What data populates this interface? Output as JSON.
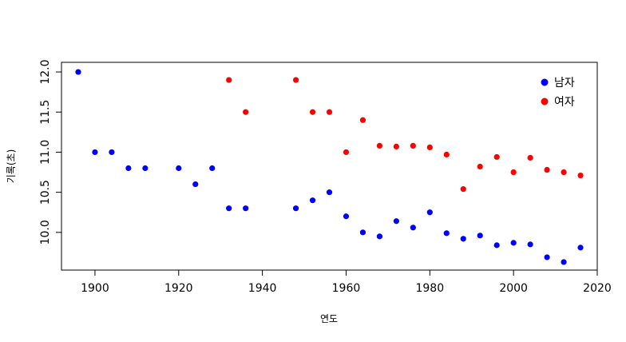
{
  "chart_data": {
    "type": "scatter",
    "title": "",
    "xlabel": "연도",
    "ylabel": "기록(초)",
    "xlim": [
      1892,
      2020
    ],
    "ylim": [
      9.53,
      12.12
    ],
    "xticks": [
      "1900",
      "1920",
      "1940",
      "1960",
      "1980",
      "2000",
      "2020"
    ],
    "yticks": [
      "10.0",
      "10.5",
      "11.0",
      "11.5",
      "12.0"
    ],
    "grid": false,
    "legend_position": "top-right",
    "series": [
      {
        "name": "남자",
        "color": "#0000ff",
        "points": [
          {
            "x": 1896,
            "y": 12.0
          },
          {
            "x": 1900,
            "y": 11.0
          },
          {
            "x": 1904,
            "y": 11.0
          },
          {
            "x": 1908,
            "y": 10.8
          },
          {
            "x": 1912,
            "y": 10.8
          },
          {
            "x": 1920,
            "y": 10.8
          },
          {
            "x": 1924,
            "y": 10.6
          },
          {
            "x": 1928,
            "y": 10.8
          },
          {
            "x": 1932,
            "y": 10.3
          },
          {
            "x": 1936,
            "y": 10.3
          },
          {
            "x": 1948,
            "y": 10.3
          },
          {
            "x": 1952,
            "y": 10.4
          },
          {
            "x": 1956,
            "y": 10.5
          },
          {
            "x": 1960,
            "y": 10.2
          },
          {
            "x": 1964,
            "y": 10.0
          },
          {
            "x": 1968,
            "y": 9.95
          },
          {
            "x": 1972,
            "y": 10.14
          },
          {
            "x": 1976,
            "y": 10.06
          },
          {
            "x": 1980,
            "y": 10.25
          },
          {
            "x": 1984,
            "y": 9.99
          },
          {
            "x": 1988,
            "y": 9.92
          },
          {
            "x": 1992,
            "y": 9.96
          },
          {
            "x": 1996,
            "y": 9.84
          },
          {
            "x": 2000,
            "y": 9.87
          },
          {
            "x": 2004,
            "y": 9.85
          },
          {
            "x": 2008,
            "y": 9.69
          },
          {
            "x": 2012,
            "y": 9.63
          },
          {
            "x": 2016,
            "y": 9.81
          }
        ]
      },
      {
        "name": "여자",
        "color": "#ff0000",
        "points": [
          {
            "x": 1932,
            "y": 11.9
          },
          {
            "x": 1936,
            "y": 11.5
          },
          {
            "x": 1948,
            "y": 11.9
          },
          {
            "x": 1952,
            "y": 11.5
          },
          {
            "x": 1956,
            "y": 11.5
          },
          {
            "x": 1960,
            "y": 11.0
          },
          {
            "x": 1964,
            "y": 11.4
          },
          {
            "x": 1968,
            "y": 11.08
          },
          {
            "x": 1972,
            "y": 11.07
          },
          {
            "x": 1976,
            "y": 11.08
          },
          {
            "x": 1980,
            "y": 11.06
          },
          {
            "x": 1984,
            "y": 10.97
          },
          {
            "x": 1988,
            "y": 10.54
          },
          {
            "x": 1992,
            "y": 10.82
          },
          {
            "x": 1996,
            "y": 10.94
          },
          {
            "x": 2000,
            "y": 10.75
          },
          {
            "x": 2004,
            "y": 10.93
          },
          {
            "x": 2008,
            "y": 10.78
          },
          {
            "x": 2012,
            "y": 10.75
          },
          {
            "x": 2016,
            "y": 10.71
          }
        ]
      }
    ]
  }
}
